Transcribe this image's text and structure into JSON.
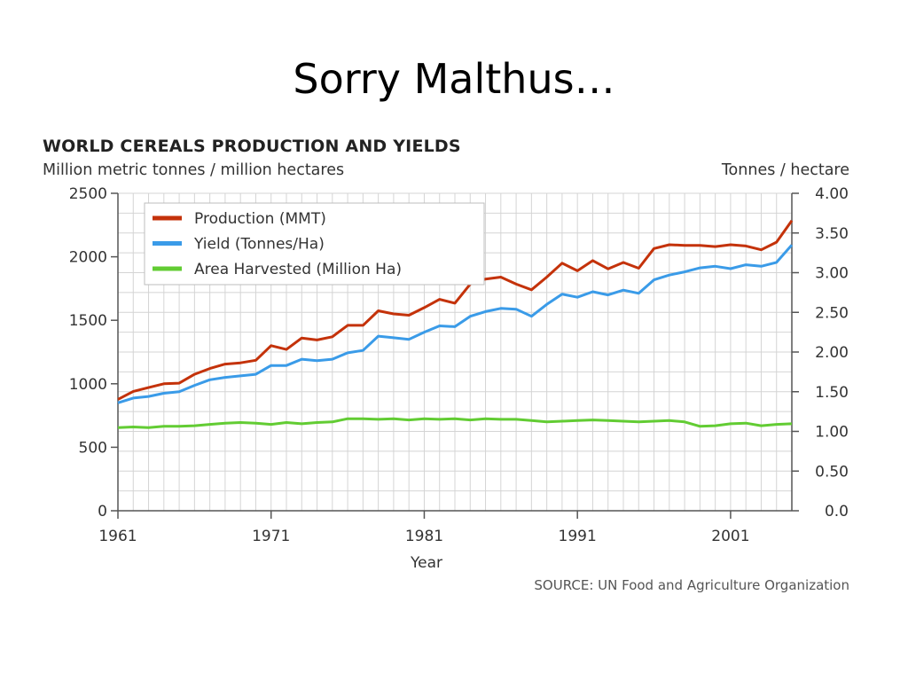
{
  "slide": {
    "title": "Sorry Malthus…"
  },
  "chart_data": {
    "type": "line",
    "title": "WORLD CEREALS PRODUCTION AND YIELDS",
    "left_axis_label": "Million metric tonnes / million hectares",
    "right_axis_label": "Tonnes / hectare",
    "xlabel": "Year",
    "source": "SOURCE: UN Food and Agriculture Organization",
    "x_ticks": [
      "1961",
      "1971",
      "1981",
      "1991",
      "2001"
    ],
    "y_left_ticks": [
      "0",
      "500",
      "1000",
      "1500",
      "2000",
      "2500"
    ],
    "y_right_ticks": [
      "0.0",
      "0.50",
      "1.00",
      "1.50",
      "2.00",
      "2.50",
      "3.00",
      "3.50",
      "4.00"
    ],
    "ylim_left": [
      0,
      2500
    ],
    "ylim_right": [
      0,
      4.0
    ],
    "xlim": [
      1961,
      2005
    ],
    "grid": true,
    "legend_position": "top-left",
    "x": [
      1961,
      1962,
      1963,
      1964,
      1965,
      1966,
      1967,
      1968,
      1969,
      1970,
      1971,
      1972,
      1973,
      1974,
      1975,
      1976,
      1977,
      1978,
      1979,
      1980,
      1981,
      1982,
      1983,
      1984,
      1985,
      1986,
      1987,
      1988,
      1989,
      1990,
      1991,
      1992,
      1993,
      1994,
      1995,
      1996,
      1997,
      1998,
      1999,
      2000,
      2001,
      2002,
      2003,
      2004,
      2005
    ],
    "series": [
      {
        "name": "Production (MMT)",
        "axis": "left",
        "color": "#c4320a",
        "values": [
          877,
          940,
          970,
          1000,
          1005,
          1075,
          1120,
          1155,
          1165,
          1185,
          1300,
          1270,
          1360,
          1345,
          1370,
          1460,
          1460,
          1575,
          1550,
          1540,
          1600,
          1665,
          1635,
          1785,
          1825,
          1840,
          1785,
          1740,
          1840,
          1950,
          1890,
          1970,
          1905,
          1955,
          1910,
          2065,
          2095,
          2090,
          2090,
          2080,
          2095,
          2085,
          2055,
          2115,
          2285
        ]
      },
      {
        "name": "Yield (Tonnes/Ha)",
        "axis": "right",
        "color": "#3a9be8",
        "values": [
          1.36,
          1.42,
          1.44,
          1.48,
          1.5,
          1.58,
          1.65,
          1.68,
          1.7,
          1.72,
          1.83,
          1.83,
          1.91,
          1.89,
          1.91,
          1.99,
          2.02,
          2.2,
          2.18,
          2.16,
          2.25,
          2.33,
          2.32,
          2.45,
          2.51,
          2.55,
          2.54,
          2.45,
          2.6,
          2.73,
          2.69,
          2.76,
          2.72,
          2.78,
          2.74,
          2.91,
          2.97,
          3.01,
          3.06,
          3.08,
          3.05,
          3.1,
          3.08,
          3.13,
          3.35
        ]
      },
      {
        "name": "Area Harvested (Million Ha)",
        "axis": "left",
        "color": "#62cc33",
        "values": [
          655,
          660,
          655,
          665,
          665,
          670,
          680,
          690,
          695,
          690,
          680,
          695,
          685,
          695,
          700,
          725,
          725,
          720,
          725,
          715,
          725,
          720,
          725,
          715,
          725,
          720,
          720,
          710,
          700,
          705,
          710,
          715,
          710,
          705,
          700,
          705,
          710,
          700,
          665,
          670,
          685,
          690,
          670,
          680,
          685
        ]
      }
    ]
  }
}
